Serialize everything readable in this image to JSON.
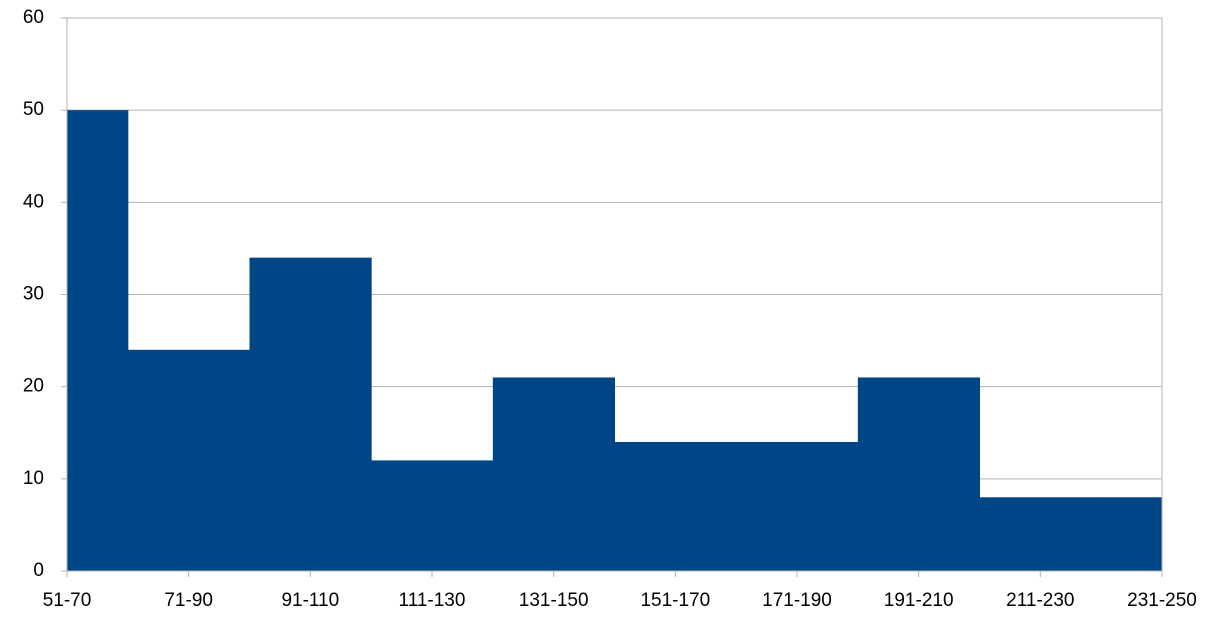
{
  "chart_data": {
    "type": "bar",
    "categories": [
      "51-70",
      "71-90",
      "91-110",
      "111-130",
      "131-150",
      "151-170",
      "171-190",
      "191-210",
      "211-230",
      "231-250"
    ],
    "values": [
      50,
      24,
      34,
      12,
      21,
      14,
      14,
      21,
      8,
      8
    ],
    "color": "#004586",
    "ylim": [
      0,
      60
    ],
    "yticks": [
      0,
      10,
      20,
      30,
      40,
      50,
      60
    ],
    "grid": true
  }
}
